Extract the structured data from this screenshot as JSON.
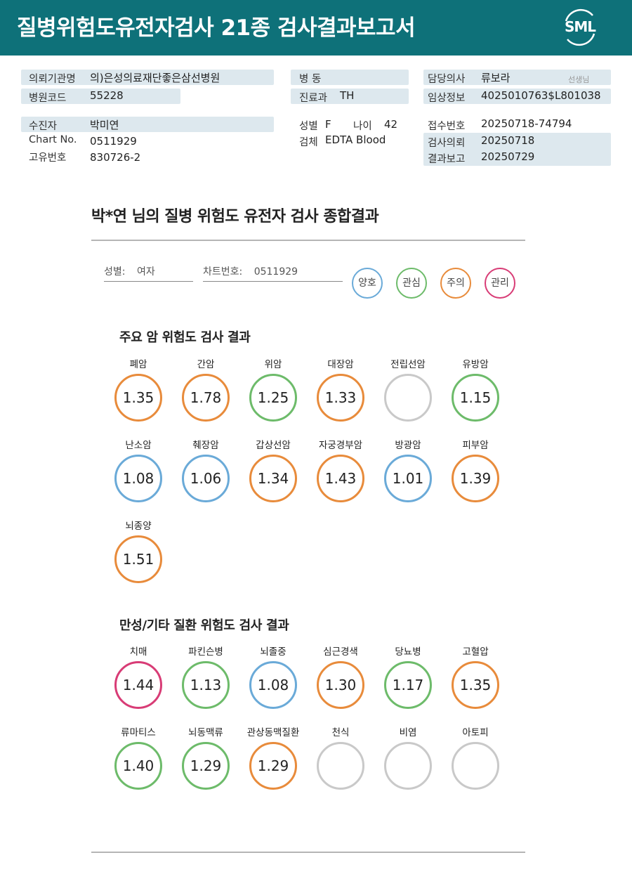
{
  "header": {
    "title": "질병위험도유전자검사 21종 검사결과보고서",
    "logo_text": "SML"
  },
  "info": {
    "institution_label": "의뢰기관명",
    "institution_value": "의)은성의료재단좋은삼선병원",
    "hospital_code_label": "병원코드",
    "hospital_code_value": "55228",
    "ward_label": "병 동",
    "dept_label": "진료과",
    "dept_value": "TH",
    "doctor_label": "담당의사",
    "doctor_value": "류보라",
    "doctor_suffix": "선생님",
    "clinical_label": "임상정보",
    "clinical_value": "4025010763$L801038",
    "patient_label": "수진자",
    "patient_value": "박미연",
    "chart_label": "Chart No.",
    "chart_value": "0511929",
    "uid_label": "고유번호",
    "uid_value": "830726-2",
    "sex_label": "성별",
    "sex_value": "F",
    "age_label": "나이",
    "age_value": "42",
    "specimen_label": "검체",
    "specimen_value": "EDTA Blood",
    "receipt_label": "접수번호",
    "receipt_value": "20250718-74794",
    "request_label": "검사의뢰",
    "request_value": "20250718",
    "report_label": "결과보고",
    "report_value": "20250729"
  },
  "summary": {
    "title": "박*연 님의 질병 위험도 유전자 검사 종합결과",
    "sex_label": "성별:",
    "sex_value": "여자",
    "chart_label": "차트번호:",
    "chart_value": "0511929"
  },
  "legend": [
    {
      "label": "양호",
      "color": "#6aaad8"
    },
    {
      "label": "관심",
      "color": "#6dbb6a"
    },
    {
      "label": "주의",
      "color": "#e88b3b"
    },
    {
      "label": "관리",
      "color": "#d83c76"
    }
  ],
  "colors": {
    "양호": "#6aaad8",
    "관심": "#6dbb6a",
    "주의": "#e88b3b",
    "관리": "#d83c76",
    "none": "#c9c9c9"
  },
  "cancer": {
    "title": "주요 암 위험도 검사 결과",
    "items": [
      {
        "name": "폐암",
        "value": "1.35",
        "level": "주의"
      },
      {
        "name": "간암",
        "value": "1.78",
        "level": "주의"
      },
      {
        "name": "위암",
        "value": "1.25",
        "level": "관심"
      },
      {
        "name": "대장암",
        "value": "1.33",
        "level": "주의"
      },
      {
        "name": "전립선암",
        "value": "",
        "level": "none"
      },
      {
        "name": "유방암",
        "value": "1.15",
        "level": "관심"
      },
      {
        "name": "난소암",
        "value": "1.08",
        "level": "양호"
      },
      {
        "name": "췌장암",
        "value": "1.06",
        "level": "양호"
      },
      {
        "name": "갑상선암",
        "value": "1.34",
        "level": "주의"
      },
      {
        "name": "자궁경부암",
        "value": "1.43",
        "level": "주의"
      },
      {
        "name": "방광암",
        "value": "1.01",
        "level": "양호"
      },
      {
        "name": "피부암",
        "value": "1.39",
        "level": "주의"
      },
      {
        "name": "뇌종양",
        "value": "1.51",
        "level": "주의"
      }
    ]
  },
  "chronic": {
    "title": "만성/기타 질환 위험도 검사 결과",
    "items": [
      {
        "name": "치매",
        "value": "1.44",
        "level": "관리"
      },
      {
        "name": "파킨슨병",
        "value": "1.13",
        "level": "관심"
      },
      {
        "name": "뇌졸중",
        "value": "1.08",
        "level": "양호"
      },
      {
        "name": "심근경색",
        "value": "1.30",
        "level": "주의"
      },
      {
        "name": "당뇨병",
        "value": "1.17",
        "level": "관심"
      },
      {
        "name": "고혈압",
        "value": "1.35",
        "level": "주의"
      },
      {
        "name": "류마티스",
        "value": "1.40",
        "level": "관심"
      },
      {
        "name": "뇌동맥류",
        "value": "1.29",
        "level": "관심"
      },
      {
        "name": "관상동맥질환",
        "value": "1.29",
        "level": "주의"
      },
      {
        "name": "천식",
        "value": "",
        "level": "none"
      },
      {
        "name": "비염",
        "value": "",
        "level": "none"
      },
      {
        "name": "아토피",
        "value": "",
        "level": "none"
      }
    ]
  }
}
